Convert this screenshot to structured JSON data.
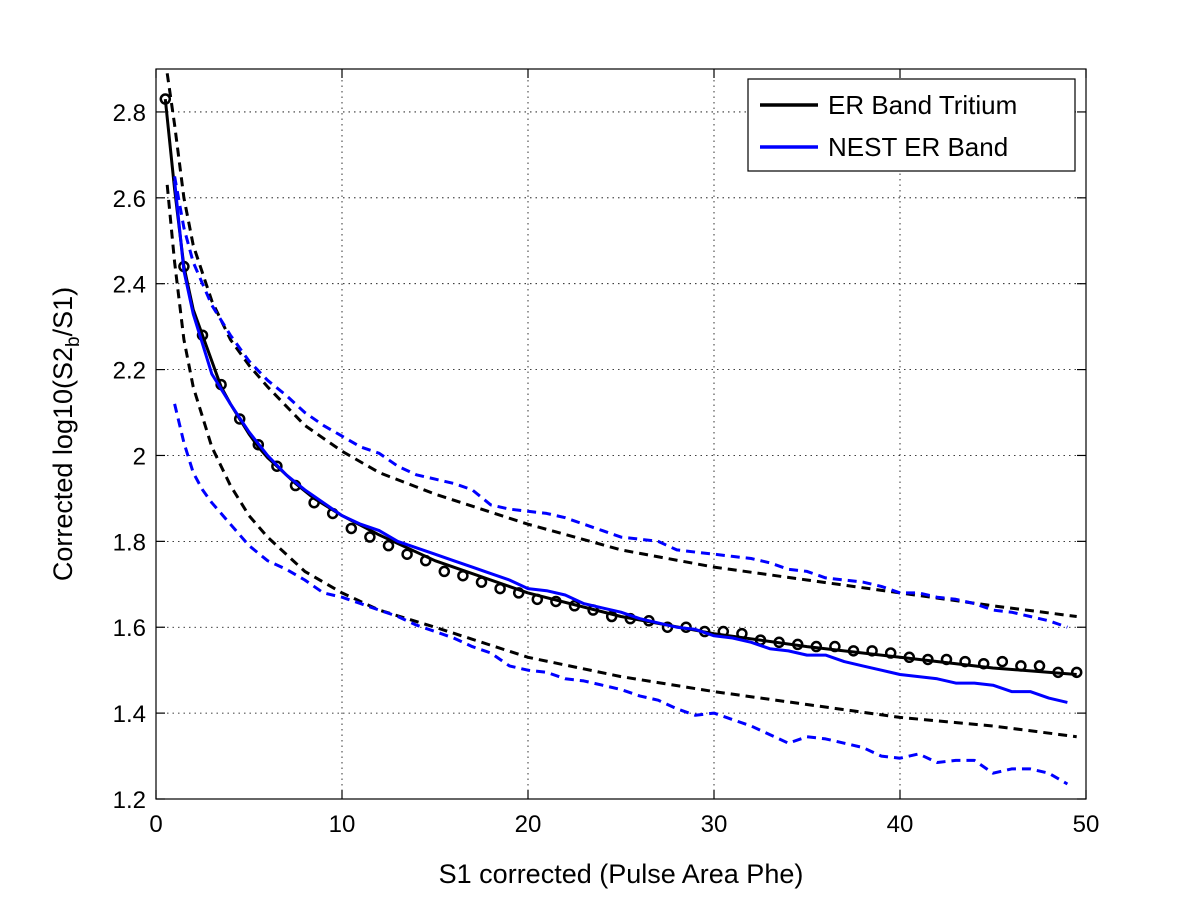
{
  "chart_data": {
    "type": "line",
    "xlabel": "S1 corrected (Pulse Area Phe)",
    "ylabel": {
      "prefix": "Corrected log10(S2",
      "sub": "b",
      "suffix": "/S1)"
    },
    "xlim": [
      0,
      50
    ],
    "ylim": [
      1.2,
      2.9
    ],
    "xticks": [
      0,
      10,
      20,
      30,
      40,
      50
    ],
    "yticks": [
      1.2,
      1.4,
      1.6,
      1.8,
      2.0,
      2.2,
      2.4,
      2.6,
      2.8
    ],
    "xtick_labels": [
      "0",
      "10",
      "20",
      "30",
      "40",
      "50"
    ],
    "ytick_labels": [
      "1.2",
      "1.4",
      "1.6",
      "1.8",
      "2",
      "2.2",
      "2.4",
      "2.6",
      "2.8"
    ],
    "grid": true,
    "legend_position": "top-right",
    "legend": [
      {
        "label": "ER Band Tritium",
        "color": "#000000"
      },
      {
        "label": "NEST ER Band",
        "color": "#0000ff"
      }
    ],
    "series": [
      {
        "legend_index": 0,
        "color": "#000000",
        "style": "solid",
        "width": 3,
        "x": [
          0.5,
          1.0,
          1.5,
          2.0,
          2.5,
          3.0,
          3.5,
          4.0,
          4.5,
          5.0,
          5.5,
          6.0,
          6.5,
          7.0,
          7.5,
          8.5,
          10,
          12,
          15,
          20,
          25,
          30,
          35,
          40,
          45,
          49.5
        ],
        "y": [
          2.83,
          2.62,
          2.44,
          2.34,
          2.28,
          2.22,
          2.16,
          2.12,
          2.085,
          2.05,
          2.02,
          1.995,
          1.975,
          1.955,
          1.935,
          1.9,
          1.86,
          1.815,
          1.755,
          1.68,
          1.625,
          1.585,
          1.555,
          1.53,
          1.505,
          1.49
        ]
      },
      {
        "legend_index": 0,
        "color": "#000000",
        "style": "markers",
        "marker": "circle",
        "x": [
          0.5,
          1.5,
          2.5,
          3.5,
          4.5,
          5.5,
          6.5,
          7.5,
          8.5,
          9.5,
          10.5,
          11.5,
          12.5,
          13.5,
          14.5,
          15.5,
          16.5,
          17.5,
          18.5,
          19.5,
          20.5,
          21.5,
          22.5,
          23.5,
          24.5,
          25.5,
          26.5,
          27.5,
          28.5,
          29.5,
          30.5,
          31.5,
          32.5,
          33.5,
          34.5,
          35.5,
          36.5,
          37.5,
          38.5,
          39.5,
          40.5,
          41.5,
          42.5,
          43.5,
          44.5,
          45.5,
          46.5,
          47.5,
          48.5,
          49.5
        ],
        "y": [
          2.83,
          2.44,
          2.28,
          2.165,
          2.085,
          2.025,
          1.975,
          1.93,
          1.89,
          1.865,
          1.83,
          1.81,
          1.79,
          1.77,
          1.755,
          1.73,
          1.72,
          1.705,
          1.69,
          1.68,
          1.665,
          1.66,
          1.65,
          1.64,
          1.625,
          1.62,
          1.615,
          1.6,
          1.6,
          1.59,
          1.59,
          1.585,
          1.57,
          1.565,
          1.56,
          1.555,
          1.555,
          1.545,
          1.545,
          1.54,
          1.53,
          1.525,
          1.525,
          1.52,
          1.515,
          1.52,
          1.51,
          1.51,
          1.495,
          1.495
        ]
      },
      {
        "legend_index": null,
        "color": "#000000",
        "style": "dashed",
        "width": 3,
        "x": [
          0.6,
          1.0,
          1.5,
          2.0,
          3.0,
          4.0,
          5.0,
          6.0,
          8.0,
          10,
          12,
          15,
          20,
          25,
          30,
          35,
          40,
          45,
          49.5
        ],
        "y": [
          2.89,
          2.77,
          2.6,
          2.49,
          2.36,
          2.27,
          2.21,
          2.16,
          2.07,
          2.01,
          1.96,
          1.91,
          1.84,
          1.78,
          1.74,
          1.71,
          1.68,
          1.65,
          1.625
        ]
      },
      {
        "legend_index": null,
        "color": "#000000",
        "style": "dashed",
        "width": 3,
        "x": [
          0.6,
          1.0,
          1.5,
          2.0,
          3.0,
          4.0,
          5.0,
          6.0,
          8.0,
          10,
          12,
          15,
          20,
          25,
          30,
          35,
          40,
          45,
          49.5
        ],
        "y": [
          2.63,
          2.45,
          2.27,
          2.16,
          2.02,
          1.93,
          1.86,
          1.81,
          1.73,
          1.68,
          1.64,
          1.6,
          1.53,
          1.485,
          1.45,
          1.42,
          1.39,
          1.37,
          1.345
        ]
      },
      {
        "legend_index": 1,
        "color": "#0000ff",
        "style": "solid",
        "width": 3,
        "x": [
          1.0,
          1.5,
          2.0,
          2.5,
          3.0,
          4.0,
          5.0,
          6.0,
          7.0,
          8.0,
          9.0,
          10,
          11,
          12,
          13,
          14,
          15,
          16,
          17,
          18,
          19,
          20,
          21,
          22,
          23,
          24,
          25,
          26,
          27,
          28,
          29,
          30,
          31,
          32,
          33,
          34,
          35,
          36,
          37,
          38,
          39,
          40,
          41,
          42,
          43,
          44,
          45,
          46,
          47,
          48,
          49
        ],
        "y": [
          2.64,
          2.43,
          2.33,
          2.26,
          2.19,
          2.12,
          2.055,
          2.0,
          1.955,
          1.92,
          1.89,
          1.86,
          1.84,
          1.825,
          1.8,
          1.785,
          1.77,
          1.755,
          1.74,
          1.725,
          1.71,
          1.69,
          1.685,
          1.675,
          1.655,
          1.645,
          1.635,
          1.62,
          1.61,
          1.6,
          1.595,
          1.58,
          1.575,
          1.565,
          1.55,
          1.545,
          1.535,
          1.535,
          1.52,
          1.51,
          1.5,
          1.49,
          1.485,
          1.48,
          1.47,
          1.47,
          1.465,
          1.45,
          1.45,
          1.435,
          1.425
        ]
      },
      {
        "legend_index": null,
        "color": "#0000ff",
        "style": "dashed",
        "width": 3,
        "x": [
          1.0,
          1.5,
          2.0,
          3.0,
          4.0,
          5.0,
          6.0,
          7.0,
          8.0,
          9.0,
          10,
          11,
          12,
          13,
          14,
          15,
          16,
          17,
          18,
          19,
          20,
          21,
          22,
          23,
          24,
          25,
          26,
          27,
          28,
          29,
          30,
          31,
          32,
          33,
          34,
          35,
          36,
          37,
          38,
          39,
          40,
          41,
          42,
          43,
          44,
          45,
          46,
          47,
          48,
          49
        ],
        "y": [
          2.65,
          2.53,
          2.45,
          2.35,
          2.28,
          2.22,
          2.175,
          2.14,
          2.1,
          2.07,
          2.045,
          2.02,
          2.005,
          1.975,
          1.955,
          1.945,
          1.935,
          1.92,
          1.885,
          1.875,
          1.87,
          1.865,
          1.855,
          1.84,
          1.825,
          1.81,
          1.805,
          1.8,
          1.78,
          1.775,
          1.77,
          1.765,
          1.76,
          1.75,
          1.735,
          1.73,
          1.715,
          1.71,
          1.705,
          1.695,
          1.68,
          1.68,
          1.67,
          1.665,
          1.655,
          1.64,
          1.635,
          1.625,
          1.615,
          1.6
        ]
      },
      {
        "legend_index": null,
        "color": "#0000ff",
        "style": "dashed",
        "width": 3,
        "x": [
          1.0,
          1.5,
          2.0,
          2.5,
          3.0,
          4.0,
          5.0,
          6.0,
          7.0,
          8.0,
          9.0,
          10,
          11,
          12,
          13,
          14,
          15,
          16,
          17,
          18,
          19,
          20,
          21,
          22,
          23,
          24,
          25,
          26,
          27,
          28,
          29,
          30,
          31,
          32,
          33,
          34,
          35,
          36,
          37,
          38,
          39,
          40,
          41,
          42,
          43,
          44,
          45,
          46,
          47,
          48,
          49
        ],
        "y": [
          2.12,
          2.03,
          1.96,
          1.92,
          1.89,
          1.84,
          1.79,
          1.755,
          1.735,
          1.71,
          1.68,
          1.67,
          1.655,
          1.64,
          1.625,
          1.605,
          1.59,
          1.575,
          1.555,
          1.54,
          1.51,
          1.5,
          1.495,
          1.48,
          1.475,
          1.465,
          1.455,
          1.44,
          1.43,
          1.41,
          1.395,
          1.4,
          1.385,
          1.37,
          1.35,
          1.33,
          1.345,
          1.34,
          1.33,
          1.32,
          1.3,
          1.295,
          1.305,
          1.285,
          1.29,
          1.29,
          1.26,
          1.27,
          1.27,
          1.26,
          1.235
        ]
      }
    ]
  }
}
